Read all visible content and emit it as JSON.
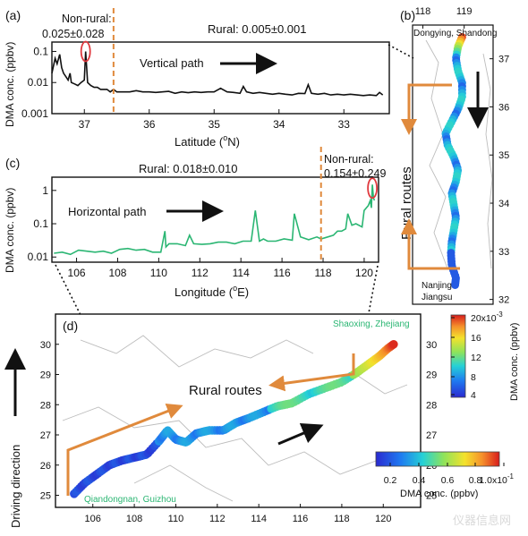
{
  "panels": {
    "a": {
      "label": "(a)",
      "non_rural_label": "Non-rural:",
      "non_rural_value": "0.025±0.028",
      "rural_text": "Rural: 0.005±0.001",
      "path_text": "Vertical path",
      "ylabel": "DMA conc. (ppbv)",
      "xlabel_pre": "Latitude (",
      "xlabel_sup": "o",
      "xlabel_post": "N)"
    },
    "b": {
      "label": "(b)",
      "start_label": "Dongying, Shandong",
      "end_label_1": "Nanjing",
      "end_label_2": "Jiangsu",
      "routes_label": "Rural routes"
    },
    "c": {
      "label": "(c)",
      "non_rural_label": "Non-rural:",
      "non_rural_value": "0.154±0.249",
      "rural_text": "Rural: 0.018±0.010",
      "path_text": "Horizontal path",
      "ylabel": "DMA conc. (ppbv)",
      "xlabel_pre": "Longitude (",
      "xlabel_sup": "o",
      "xlabel_post": "E)"
    },
    "d": {
      "label": "(d)",
      "start_label": "Qiandongnan, Guizhou",
      "end_label": "Shaoxing, Zhejiang",
      "routes_label": "Rural routes",
      "driving_label": "Driving direction"
    },
    "colorbar_b": {
      "title": "DMA conc. (ppbv)",
      "ticks": [
        "20x10",
        "16",
        "12",
        "8",
        "4"
      ],
      "exp": "-3"
    },
    "colorbar_d": {
      "title": "DMA conc. (ppbv)",
      "ticks": [
        "0.2",
        "0.4",
        "0.6",
        "0.8",
        "1.0x10"
      ],
      "exp": "-1"
    }
  },
  "watermark": "仪器信息网",
  "colors": {
    "route_arrow": "#e08a3c",
    "divider": "#e08a3c",
    "series_a": "#111111",
    "series_c": "#2bb673",
    "circle": "#e0393e",
    "green_label": "#2bb673"
  },
  "chart_data": [
    {
      "type": "line",
      "panel": "a",
      "xlabel": "Latitude (°N)",
      "ylabel": "DMA conc. (ppbv)",
      "xlim": [
        37.5,
        32.3
      ],
      "ylim": [
        0.001,
        0.2
      ],
      "yscale": "log",
      "x_ticks": [
        37,
        36,
        35,
        34,
        33
      ],
      "y_ticks": [
        "0.001",
        "0.01",
        "0.1"
      ],
      "divider_x": 36.55,
      "series": [
        {
          "x": [
            37.5,
            37.45,
            37.42,
            37.38,
            37.35,
            37.32,
            37.28,
            37.25,
            37.22,
            37.2,
            37.15,
            37.1,
            37.05,
            37.0,
            36.98,
            36.95,
            36.9,
            36.85,
            36.8,
            36.75,
            36.7,
            36.65,
            36.6,
            36.55,
            36.5,
            36.4,
            36.3,
            36.2,
            36.1,
            36.0,
            35.9,
            35.8,
            35.7,
            35.6,
            35.5,
            35.4,
            35.3,
            35.2,
            35.1,
            35.0,
            34.9,
            34.8,
            34.7,
            34.6,
            34.55,
            34.5,
            34.4,
            34.3,
            34.2,
            34.1,
            34.0,
            33.9,
            33.8,
            33.7,
            33.6,
            33.55,
            33.5,
            33.4,
            33.3,
            33.2,
            33.1,
            33.0,
            32.9,
            32.8,
            32.7,
            32.6,
            32.5,
            32.45,
            32.4
          ],
          "y": [
            0.02,
            0.06,
            0.04,
            0.08,
            0.03,
            0.02,
            0.015,
            0.012,
            0.02,
            0.01,
            0.009,
            0.008,
            0.01,
            0.012,
            0.1,
            0.01,
            0.008,
            0.007,
            0.007,
            0.006,
            0.006,
            0.006,
            0.005,
            0.006,
            0.005,
            0.005,
            0.005,
            0.0055,
            0.005,
            0.005,
            0.0048,
            0.005,
            0.0052,
            0.0045,
            0.005,
            0.0047,
            0.005,
            0.0048,
            0.005,
            0.005,
            0.0065,
            0.005,
            0.0048,
            0.0045,
            0.0075,
            0.005,
            0.0045,
            0.0048,
            0.0045,
            0.0042,
            0.0045,
            0.0042,
            0.004,
            0.0045,
            0.0044,
            0.0085,
            0.0045,
            0.0042,
            0.0045,
            0.004,
            0.0042,
            0.004,
            0.0042,
            0.004,
            0.0038,
            0.004,
            0.0038,
            0.0048,
            0.004
          ]
        }
      ]
    },
    {
      "type": "line",
      "panel": "c",
      "xlabel": "Longitude (°E)",
      "ylabel": "DMA conc. (ppbv)",
      "xlim": [
        104.8,
        120.7
      ],
      "ylim": [
        0.007,
        2.5
      ],
      "yscale": "log",
      "x_ticks": [
        106,
        108,
        110,
        112,
        114,
        116,
        118,
        120
      ],
      "y_ticks": [
        "0.01",
        "0.1",
        "1"
      ],
      "divider_x": 117.9,
      "series": [
        {
          "x": [
            104.9,
            105.3,
            105.7,
            106.1,
            106.5,
            106.9,
            107.3,
            107.7,
            108.1,
            108.5,
            108.9,
            109.3,
            109.7,
            110.1,
            110.3,
            110.35,
            110.5,
            110.9,
            111.3,
            111.5,
            111.7,
            112.1,
            112.5,
            112.9,
            113.3,
            113.7,
            114.1,
            114.5,
            114.7,
            114.9,
            115.1,
            115.3,
            115.7,
            116.1,
            116.5,
            116.6,
            116.9,
            117.3,
            117.7,
            117.9,
            118.1,
            118.5,
            118.7,
            118.9,
            119.1,
            119.2,
            119.4,
            119.6,
            119.9,
            120.0,
            120.2,
            120.3,
            120.35,
            120.4,
            120.45,
            120.5
          ],
          "y": [
            0.013,
            0.014,
            0.012,
            0.016,
            0.015,
            0.014,
            0.015,
            0.013,
            0.017,
            0.018,
            0.016,
            0.017,
            0.014,
            0.014,
            0.06,
            0.02,
            0.025,
            0.025,
            0.022,
            0.045,
            0.025,
            0.024,
            0.025,
            0.028,
            0.028,
            0.025,
            0.03,
            0.03,
            0.25,
            0.03,
            0.035,
            0.03,
            0.03,
            0.035,
            0.032,
            0.2,
            0.04,
            0.033,
            0.04,
            0.035,
            0.038,
            0.045,
            0.06,
            0.06,
            0.07,
            0.2,
            0.09,
            0.1,
            0.08,
            0.25,
            0.35,
            0.5,
            0.3,
            1.5,
            0.6,
            0.5
          ]
        }
      ]
    },
    {
      "type": "scatter",
      "panel": "b",
      "ylim": [
        31.9,
        37.7
      ],
      "xlim": [
        117.75,
        119.7
      ],
      "x_ticks": [
        118,
        119
      ],
      "y_ticks": [
        32,
        33,
        34,
        35,
        36,
        37
      ],
      "colorbar": {
        "min": 0.002,
        "max": 0.02
      }
    },
    {
      "type": "scatter",
      "panel": "d",
      "xlim": [
        104.2,
        121.8
      ],
      "ylim": [
        24.6,
        31.0
      ],
      "x_ticks": [
        106,
        108,
        110,
        112,
        114,
        116,
        118,
        120
      ],
      "y_ticks": [
        25,
        26,
        27,
        28,
        29,
        30
      ],
      "colorbar": {
        "min": 0.01,
        "max": 0.1
      }
    }
  ]
}
